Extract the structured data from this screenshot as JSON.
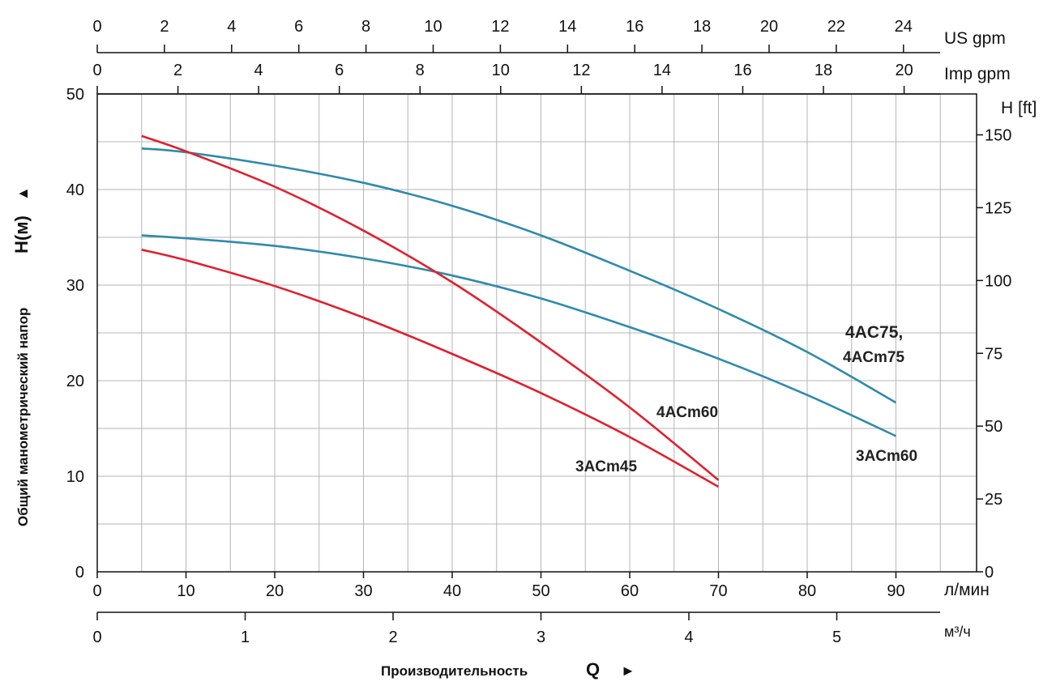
{
  "chart_data": {
    "type": "line",
    "x_axis": {
      "label": "Производительность",
      "symbol": "Q",
      "arrow": "►",
      "unit": "л/мин",
      "ticks": [
        0,
        10,
        20,
        30,
        40,
        50,
        60,
        70,
        80,
        90
      ],
      "range": [
        0,
        95
      ]
    },
    "x_axis_m3h": {
      "unit": "м³/ч",
      "ticks": [
        0,
        1,
        2,
        3,
        4,
        5
      ]
    },
    "x_axis_us_gpm": {
      "unit": "US gpm",
      "ticks": [
        0,
        2,
        4,
        6,
        8,
        10,
        12,
        14,
        16,
        18,
        20,
        22,
        24
      ]
    },
    "x_axis_imp_gpm": {
      "unit": "Imp gpm",
      "ticks": [
        0,
        2,
        4,
        6,
        8,
        10,
        12,
        14,
        16,
        18,
        20
      ]
    },
    "y_axis": {
      "label": "Общий манометрический напор",
      "symbol": "H(м)",
      "arrow": "▲",
      "ticks": [
        0,
        10,
        20,
        30,
        40,
        50
      ],
      "range": [
        0,
        50
      ]
    },
    "y_axis_ft": {
      "label": "H [ft]",
      "ticks": [
        0,
        25,
        50,
        75,
        100,
        125,
        150
      ]
    },
    "grid": true,
    "series": [
      {
        "name": "4AC75, 4ACm75",
        "name_line1": "4AC75,",
        "name_line2": "4ACm75",
        "color": "#2e8bab",
        "x": [
          5,
          10,
          20,
          30,
          40,
          50,
          60,
          70,
          80,
          90
        ],
        "y": [
          44.3,
          43.9,
          42.5,
          40.7,
          38.3,
          35.2,
          31.5,
          27.5,
          23.0,
          17.7
        ]
      },
      {
        "name": "3ACm60",
        "color": "#2e8bab",
        "x": [
          5,
          10,
          20,
          30,
          40,
          50,
          60,
          70,
          80,
          90
        ],
        "y": [
          35.2,
          34.9,
          34.1,
          32.8,
          31.0,
          28.6,
          25.6,
          22.3,
          18.5,
          14.2
        ]
      },
      {
        "name": "4ACm60",
        "color": "#e0202e",
        "x": [
          5,
          10,
          20,
          30,
          40,
          50,
          60,
          70
        ],
        "y": [
          45.6,
          44.0,
          40.3,
          35.7,
          30.3,
          24.0,
          17.2,
          9.6
        ]
      },
      {
        "name": "3ACm45",
        "color": "#e0202e",
        "x": [
          5,
          10,
          20,
          30,
          40,
          50,
          60,
          70
        ],
        "y": [
          33.7,
          32.6,
          29.9,
          26.6,
          22.8,
          18.7,
          14.1,
          8.9
        ]
      }
    ]
  }
}
